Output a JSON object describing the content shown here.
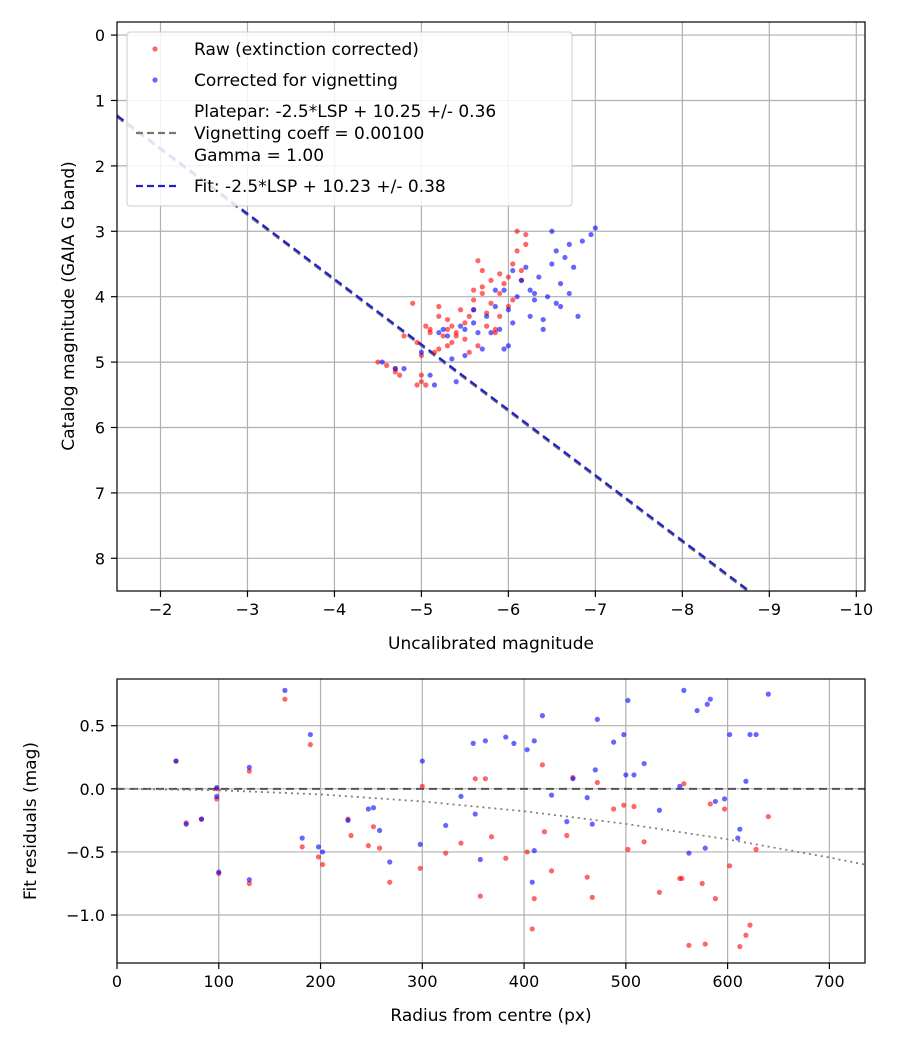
{
  "chart_data": [
    {
      "type": "scatter",
      "xlabel": "Uncalibrated magnitude",
      "ylabel": "Catalog magnitude (GAIA G band)",
      "xlim": [
        -1.5,
        -10.1
      ],
      "ylim": [
        8.5,
        -0.2
      ],
      "x_inverted": true,
      "y_inverted": true,
      "xticks": [
        -2,
        -3,
        -4,
        -5,
        -6,
        -7,
        -8,
        -9,
        -10
      ],
      "xtick_labels": [
        "−2",
        "−3",
        "−4",
        "−5",
        "−6",
        "−7",
        "−8",
        "−9",
        "−10"
      ],
      "yticks": [
        0,
        1,
        2,
        3,
        4,
        5,
        6,
        7,
        8
      ],
      "ytick_labels": [
        "0",
        "1",
        "2",
        "3",
        "4",
        "5",
        "6",
        "7",
        "8"
      ],
      "grid": true,
      "legend_position": "upper-left",
      "legend": [
        {
          "type": "marker",
          "color": "#ff0000",
          "label": "Raw (extinction corrected)"
        },
        {
          "type": "marker",
          "color": "#0000ff",
          "label": "Corrected for vignetting"
        },
        {
          "type": "line",
          "style": "dashed",
          "color": "#777777",
          "label_lines": [
            "Platepar: -2.5*LSP + 10.25 +/- 0.36",
            "Vignetting coeff = 0.00100",
            "Gamma = 1.00"
          ]
        },
        {
          "type": "line",
          "style": "dashed",
          "color": "#2222cc",
          "label": "Fit: -2.5*LSP + 10.23 +/- 0.38"
        }
      ],
      "lines": [
        {
          "name": "Platepar",
          "slope": -1.0,
          "intercept": -0.25,
          "color": "#777777",
          "style": "dashed"
        },
        {
          "name": "Fit",
          "slope": -1.0,
          "intercept": -0.27,
          "color": "#2222cc",
          "style": "dashed"
        }
      ],
      "series": [
        {
          "name": "Raw (extinction corrected)",
          "color": "#ff0000",
          "x": [
            -4.5,
            -4.6,
            -4.7,
            -4.7,
            -4.8,
            -4.9,
            -4.95,
            -5.0,
            -5.0,
            -5.05,
            -5.1,
            -5.1,
            -5.15,
            -5.2,
            -5.2,
            -5.25,
            -5.3,
            -5.3,
            -5.35,
            -5.4,
            -5.45,
            -5.5,
            -5.5,
            -5.55,
            -5.6,
            -5.6,
            -5.65,
            -5.7,
            -5.7,
            -5.75,
            -5.8,
            -5.8,
            -5.85,
            -5.9,
            -5.9,
            -5.95,
            -6.0,
            -6.0,
            -6.05,
            -6.1,
            -6.1,
            -6.15,
            -6.2,
            -6.2,
            -5.6,
            -5.65,
            -5.7,
            -5.3,
            -5.2,
            -5.05,
            -5.0,
            -5.4,
            -5.55,
            -5.75,
            -5.9,
            -6.05,
            -4.95,
            -4.75,
            -5.35,
            -5.85,
            -6.15
          ],
          "y": [
            5.0,
            5.05,
            5.1,
            5.15,
            4.6,
            4.1,
            4.7,
            4.9,
            5.2,
            5.35,
            4.5,
            4.55,
            4.85,
            4.3,
            4.8,
            4.6,
            4.5,
            4.35,
            4.45,
            4.55,
            4.2,
            4.65,
            4.4,
            4.3,
            3.9,
            4.2,
            4.75,
            3.6,
            3.85,
            4.45,
            3.75,
            4.1,
            4.5,
            3.95,
            4.3,
            3.8,
            3.7,
            4.15,
            3.5,
            3.0,
            3.3,
            3.75,
            3.2,
            3.05,
            4.05,
            3.45,
            3.95,
            4.75,
            4.15,
            4.45,
            5.3,
            4.6,
            4.85,
            4.25,
            3.65,
            4.05,
            5.35,
            5.2,
            4.7,
            4.55,
            3.6
          ]
        },
        {
          "name": "Corrected for vignetting",
          "color": "#0000ff",
          "x": [
            -4.55,
            -4.7,
            -4.8,
            -5.0,
            -5.1,
            -5.2,
            -5.25,
            -5.3,
            -5.4,
            -5.5,
            -5.5,
            -5.6,
            -5.6,
            -5.65,
            -5.7,
            -5.75,
            -5.8,
            -5.85,
            -5.85,
            -5.9,
            -5.95,
            -6.0,
            -6.0,
            -6.05,
            -6.1,
            -6.15,
            -6.2,
            -6.25,
            -6.3,
            -6.35,
            -6.4,
            -6.45,
            -6.5,
            -6.5,
            -6.55,
            -6.6,
            -6.65,
            -6.7,
            -6.7,
            -6.8,
            -6.85,
            -7.0,
            -6.25,
            -6.4,
            -5.95,
            -6.05,
            -6.55,
            -6.75,
            -5.45,
            -5.35,
            -6.3,
            -6.6,
            -6.95,
            -5.15
          ],
          "y": [
            5.0,
            5.1,
            5.1,
            4.85,
            5.2,
            4.55,
            4.5,
            4.6,
            5.3,
            4.5,
            4.9,
            4.2,
            4.4,
            4.55,
            4.8,
            4.3,
            4.55,
            4.15,
            3.9,
            4.5,
            3.9,
            4.2,
            4.75,
            4.4,
            4.0,
            3.75,
            3.55,
            4.3,
            3.95,
            3.7,
            4.5,
            4.0,
            3.5,
            3.0,
            4.1,
            3.8,
            3.4,
            3.95,
            3.2,
            4.3,
            3.15,
            2.95,
            3.9,
            4.35,
            4.8,
            3.6,
            3.3,
            3.55,
            4.45,
            4.95,
            4.05,
            4.15,
            3.05,
            5.35
          ]
        }
      ]
    },
    {
      "type": "scatter",
      "xlabel": "Radius from centre (px)",
      "ylabel": "Fit residuals (mag)",
      "xlim": [
        0,
        735
      ],
      "ylim": [
        -1.38,
        0.87
      ],
      "xticks": [
        0,
        100,
        200,
        300,
        400,
        500,
        600,
        700
      ],
      "xtick_labels": [
        "0",
        "100",
        "200",
        "300",
        "400",
        "500",
        "600",
        "700"
      ],
      "yticks": [
        0.5,
        0.0,
        -0.5,
        -1.0
      ],
      "ytick_labels": [
        "0.5",
        "0.0",
        "−0.5",
        "−1.0"
      ],
      "grid": true,
      "lines": [
        {
          "name": "zero",
          "color": "#555555",
          "style": "dashed",
          "x": [
            0,
            735
          ],
          "y": [
            0,
            0
          ]
        },
        {
          "name": "vignetting model",
          "color": "#808080",
          "style": "dotted",
          "x": [
            0,
            100,
            200,
            300,
            400,
            500,
            600,
            700,
            735
          ],
          "y": [
            0.0,
            -0.0111,
            -0.0444,
            -0.1,
            -0.1778,
            -0.2778,
            -0.4,
            -0.5444,
            -0.6002
          ]
        }
      ],
      "series": [
        {
          "name": "Raw (extinction corrected)",
          "color": "#ff0000",
          "x": [
            58,
            68,
            83,
            98,
            100,
            130,
            165,
            182,
            190,
            198,
            202,
            227,
            247,
            252,
            258,
            268,
            298,
            300,
            323,
            338,
            352,
            357,
            362,
            382,
            403,
            408,
            410,
            418,
            427,
            442,
            448,
            462,
            467,
            472,
            488,
            498,
            502,
            508,
            518,
            533,
            553,
            557,
            562,
            578,
            583,
            588,
            597,
            602,
            612,
            618,
            622,
            628,
            640,
            98,
            130,
            230,
            368,
            420,
            555,
            575
          ],
          "y": [
            0.22,
            -0.27,
            -0.24,
            -0.08,
            -0.67,
            -0.75,
            0.71,
            -0.46,
            0.35,
            -0.54,
            -0.6,
            -0.24,
            -0.45,
            -0.3,
            -0.47,
            -0.74,
            -0.63,
            0.02,
            -0.51,
            -0.43,
            0.08,
            -0.85,
            0.08,
            -0.55,
            -0.5,
            -1.11,
            -0.87,
            0.19,
            -0.65,
            -0.37,
            0.09,
            -0.7,
            -0.86,
            0.05,
            -0.16,
            -0.13,
            -0.48,
            -0.14,
            -0.42,
            -0.82,
            -0.71,
            0.04,
            -1.24,
            -1.23,
            -0.12,
            -0.87,
            -0.16,
            -0.61,
            -1.25,
            -1.16,
            -1.08,
            -0.48,
            -0.22,
            0.0,
            0.14,
            -0.37,
            -0.38,
            -0.34,
            -0.71,
            -0.75
          ]
        },
        {
          "name": "Corrected for vignetting",
          "color": "#0000ff",
          "x": [
            58,
            68,
            83,
            98,
            98,
            100,
            130,
            130,
            165,
            182,
            190,
            198,
            202,
            227,
            247,
            252,
            258,
            268,
            298,
            300,
            323,
            338,
            352,
            357,
            362,
            382,
            390,
            403,
            408,
            410,
            418,
            427,
            442,
            448,
            462,
            467,
            472,
            488,
            498,
            502,
            508,
            518,
            533,
            553,
            557,
            562,
            578,
            583,
            588,
            597,
            602,
            612,
            618,
            622,
            628,
            640,
            350,
            410,
            470,
            500,
            570,
            580,
            610
          ],
          "y": [
            0.22,
            -0.28,
            -0.24,
            0.01,
            -0.06,
            -0.66,
            -0.72,
            0.17,
            0.78,
            -0.39,
            0.43,
            -0.46,
            -0.5,
            -0.25,
            -0.16,
            -0.15,
            -0.33,
            -0.58,
            -0.44,
            0.22,
            -0.29,
            -0.06,
            -0.2,
            -0.56,
            0.38,
            0.41,
            0.36,
            0.31,
            -0.74,
            -0.49,
            0.58,
            -0.05,
            -0.26,
            0.08,
            -0.07,
            -0.28,
            0.55,
            0.37,
            0.43,
            0.7,
            0.11,
            0.2,
            -0.17,
            0.02,
            0.78,
            -0.51,
            -0.47,
            0.71,
            -0.1,
            -0.08,
            0.43,
            -0.32,
            0.06,
            0.43,
            0.43,
            0.75,
            0.36,
            0.38,
            0.15,
            0.11,
            0.62,
            0.67,
            -0.39
          ]
        }
      ]
    }
  ]
}
